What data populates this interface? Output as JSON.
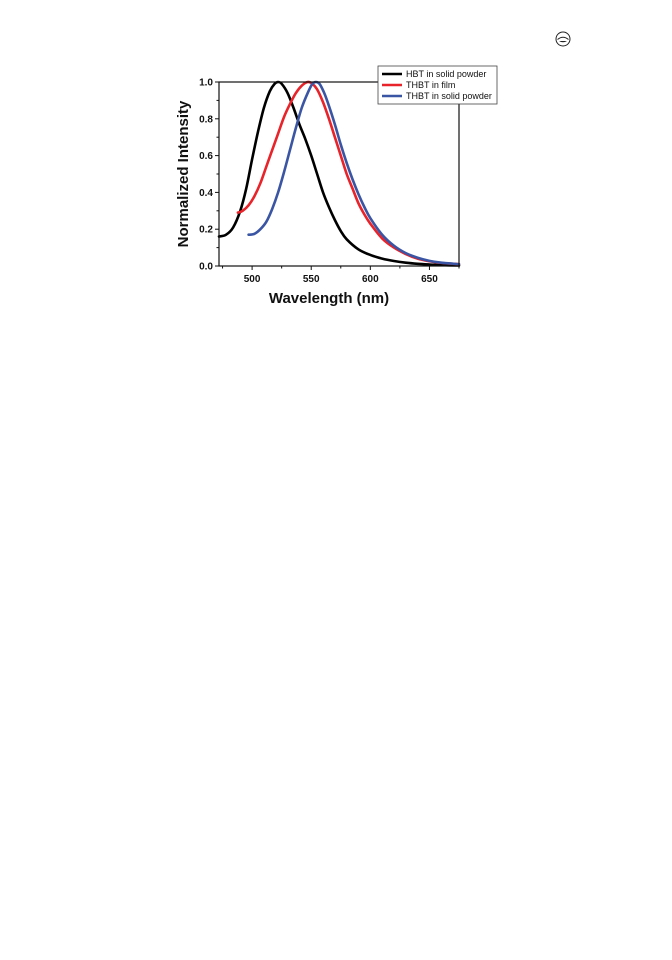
{
  "chart_data": {
    "type": "line",
    "xlabel": "Wavelength (nm)",
    "ylabel": "Normalized Intensity",
    "xlim": [
      472,
      675
    ],
    "ylim": [
      0.0,
      1.0
    ],
    "xticks": [
      500,
      550,
      600,
      650
    ],
    "yticks": [
      0.0,
      0.2,
      0.4,
      0.6,
      0.8,
      1.0
    ],
    "xtick_labels": [
      "500",
      "550",
      "600",
      "650"
    ],
    "ytick_labels": [
      "0.0",
      "0.2",
      "0.4",
      "0.6",
      "0.8",
      "1.0"
    ],
    "grid": false,
    "legend_position": "top-right",
    "series": [
      {
        "name": "HBT in solid powder",
        "color": "#000000",
        "points": [
          [
            472,
            0.16
          ],
          [
            478,
            0.17
          ],
          [
            484,
            0.21
          ],
          [
            490,
            0.3
          ],
          [
            495,
            0.42
          ],
          [
            500,
            0.58
          ],
          [
            505,
            0.73
          ],
          [
            510,
            0.86
          ],
          [
            515,
            0.95
          ],
          [
            519,
            0.99
          ],
          [
            522,
            1.0
          ],
          [
            525,
            0.99
          ],
          [
            530,
            0.94
          ],
          [
            535,
            0.86
          ],
          [
            540,
            0.77
          ],
          [
            545,
            0.69
          ],
          [
            550,
            0.6
          ],
          [
            555,
            0.5
          ],
          [
            560,
            0.4
          ],
          [
            565,
            0.32
          ],
          [
            570,
            0.25
          ],
          [
            575,
            0.19
          ],
          [
            580,
            0.145
          ],
          [
            590,
            0.09
          ],
          [
            600,
            0.06
          ],
          [
            610,
            0.04
          ],
          [
            620,
            0.027
          ],
          [
            630,
            0.018
          ],
          [
            640,
            0.012
          ],
          [
            650,
            0.008
          ],
          [
            660,
            0.005
          ],
          [
            675,
            0.003
          ]
        ]
      },
      {
        "name": "THBT in film",
        "color": "#e8232a",
        "points": [
          [
            488,
            0.29
          ],
          [
            492,
            0.3
          ],
          [
            497,
            0.33
          ],
          [
            502,
            0.38
          ],
          [
            507,
            0.45
          ],
          [
            512,
            0.54
          ],
          [
            517,
            0.63
          ],
          [
            522,
            0.72
          ],
          [
            527,
            0.81
          ],
          [
            532,
            0.88
          ],
          [
            537,
            0.94
          ],
          [
            542,
            0.98
          ],
          [
            547,
            1.0
          ],
          [
            551,
            0.99
          ],
          [
            555,
            0.96
          ],
          [
            560,
            0.89
          ],
          [
            565,
            0.8
          ],
          [
            570,
            0.7
          ],
          [
            575,
            0.6
          ],
          [
            580,
            0.5
          ],
          [
            585,
            0.42
          ],
          [
            590,
            0.34
          ],
          [
            595,
            0.28
          ],
          [
            600,
            0.23
          ],
          [
            610,
            0.15
          ],
          [
            620,
            0.1
          ],
          [
            630,
            0.065
          ],
          [
            640,
            0.04
          ],
          [
            650,
            0.026
          ],
          [
            660,
            0.017
          ],
          [
            675,
            0.01
          ]
        ]
      },
      {
        "name": "THBT in solid powder",
        "color": "#3a55a4",
        "points": [
          [
            497,
            0.17
          ],
          [
            502,
            0.175
          ],
          [
            507,
            0.2
          ],
          [
            512,
            0.24
          ],
          [
            517,
            0.31
          ],
          [
            522,
            0.4
          ],
          [
            527,
            0.51
          ],
          [
            532,
            0.63
          ],
          [
            537,
            0.75
          ],
          [
            542,
            0.86
          ],
          [
            547,
            0.94
          ],
          [
            551,
            0.99
          ],
          [
            554,
            1.0
          ],
          [
            557,
            0.99
          ],
          [
            561,
            0.94
          ],
          [
            565,
            0.87
          ],
          [
            570,
            0.77
          ],
          [
            575,
            0.66
          ],
          [
            580,
            0.56
          ],
          [
            585,
            0.47
          ],
          [
            590,
            0.39
          ],
          [
            595,
            0.32
          ],
          [
            600,
            0.26
          ],
          [
            610,
            0.17
          ],
          [
            620,
            0.11
          ],
          [
            630,
            0.07
          ],
          [
            640,
            0.045
          ],
          [
            650,
            0.028
          ],
          [
            660,
            0.018
          ],
          [
            675,
            0.01
          ]
        ]
      }
    ]
  },
  "page_mark": {
    "icon": "emblem-icon"
  }
}
